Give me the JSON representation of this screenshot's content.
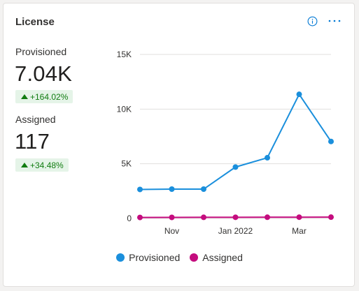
{
  "card": {
    "title": "License",
    "icons": [
      "info-icon",
      "more-options-icon"
    ]
  },
  "metrics": {
    "provisioned": {
      "label": "Provisioned",
      "value": "7.04K",
      "change": "+164.02%"
    },
    "assigned": {
      "label": "Assigned",
      "value": "117",
      "change": "+34.48%"
    }
  },
  "colors": {
    "provisioned": "#1a8fdc",
    "assigned": "#c40c7e",
    "positive": "#107c10",
    "positive_bg": "#e5f4e8"
  },
  "chart_data": {
    "type": "line",
    "x": [
      0,
      1,
      2,
      3,
      4,
      5,
      6
    ],
    "x_ticks": [
      {
        "label": "Nov",
        "at": 1
      },
      {
        "label": "Jan 2022",
        "at": 3
      },
      {
        "label": "Mar",
        "at": 5
      }
    ],
    "y_ticks": [
      {
        "label": "0",
        "value": 0
      },
      {
        "label": "5K",
        "value": 5000
      },
      {
        "label": "10K",
        "value": 10000
      },
      {
        "label": "15K",
        "value": 15000
      }
    ],
    "ylim": [
      0,
      15000
    ],
    "grid": true,
    "legend_position": "bottom",
    "series": [
      {
        "name": "Provisioned",
        "values": [
          2650,
          2680,
          2680,
          4700,
          5550,
          11350,
          7040
        ]
      },
      {
        "name": "Assigned",
        "values": [
          90,
          95,
          100,
          105,
          110,
          113,
          117
        ]
      }
    ]
  }
}
